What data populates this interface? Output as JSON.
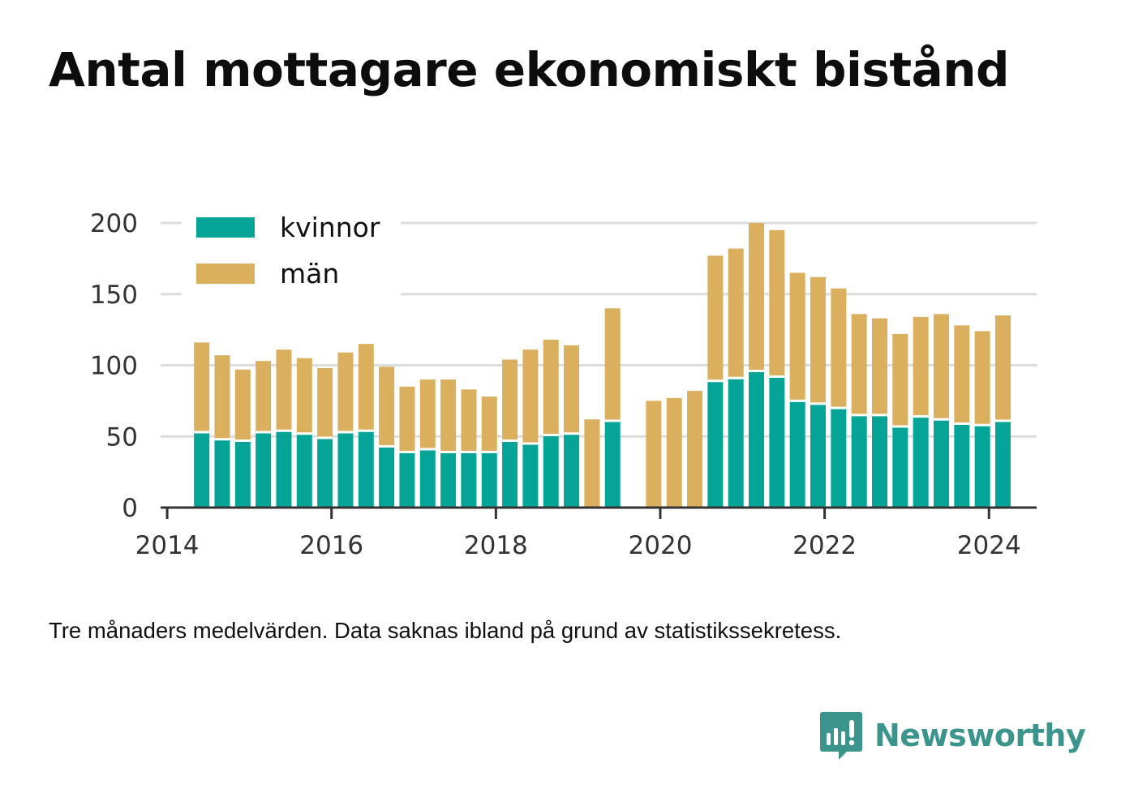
{
  "title": "Antal mottagare ekonomiskt bistånd",
  "note": "Tre månaders medelvärden. Data saknas ibland på grund av statistikssekretess.",
  "brand": {
    "name": "Newsworthy",
    "icon": "newsworthy-bar-chart-icon"
  },
  "colors": {
    "kvinnor": "#05a497",
    "man": "#dab05f",
    "grid": "#dddddd",
    "axis": "#333333"
  },
  "chart_data": {
    "type": "bar",
    "stacked": true,
    "title": "Antal mottagare ekonomiskt bistånd",
    "xlabel": "",
    "ylabel": "",
    "ylim": [
      0,
      200
    ],
    "yticks": [
      0,
      50,
      100,
      150,
      200
    ],
    "xlim": [
      2013.92,
      2024.58
    ],
    "xticks": [
      2014,
      2016,
      2018,
      2020,
      2022,
      2024
    ],
    "grid": "horizontal",
    "legend_position": "top-left",
    "x": [
      2014.42,
      2014.67,
      2014.92,
      2015.17,
      2015.42,
      2015.67,
      2015.92,
      2016.17,
      2016.42,
      2016.67,
      2016.92,
      2017.17,
      2017.42,
      2017.67,
      2017.92,
      2018.17,
      2018.42,
      2018.67,
      2018.92,
      2019.17,
      2019.42,
      2019.67,
      2019.92,
      2020.17,
      2020.42,
      2020.67,
      2020.92,
      2021.17,
      2021.42,
      2021.67,
      2021.92,
      2022.17,
      2022.42,
      2022.67,
      2022.92,
      2023.17,
      2023.42,
      2023.67,
      2023.92,
      2024.17
    ],
    "series": [
      {
        "name": "kvinnor",
        "values": [
          53,
          48,
          47,
          53,
          54,
          52,
          49,
          53,
          54,
          43,
          39,
          41,
          39,
          39,
          39,
          47,
          45,
          51,
          52,
          null,
          61,
          null,
          null,
          null,
          null,
          89,
          91,
          96,
          92,
          75,
          73,
          70,
          65,
          65,
          57,
          64,
          62,
          59,
          58,
          61
        ]
      },
      {
        "name": "män",
        "values": [
          63,
          59,
          50,
          50,
          57,
          53,
          49,
          56,
          61,
          56,
          46,
          49,
          51,
          44,
          39,
          57,
          66,
          67,
          62,
          62,
          79,
          null,
          75,
          77,
          82,
          88,
          91,
          104,
          103,
          90,
          89,
          84,
          71,
          68,
          65,
          70,
          74,
          69,
          66,
          74
        ]
      }
    ]
  }
}
